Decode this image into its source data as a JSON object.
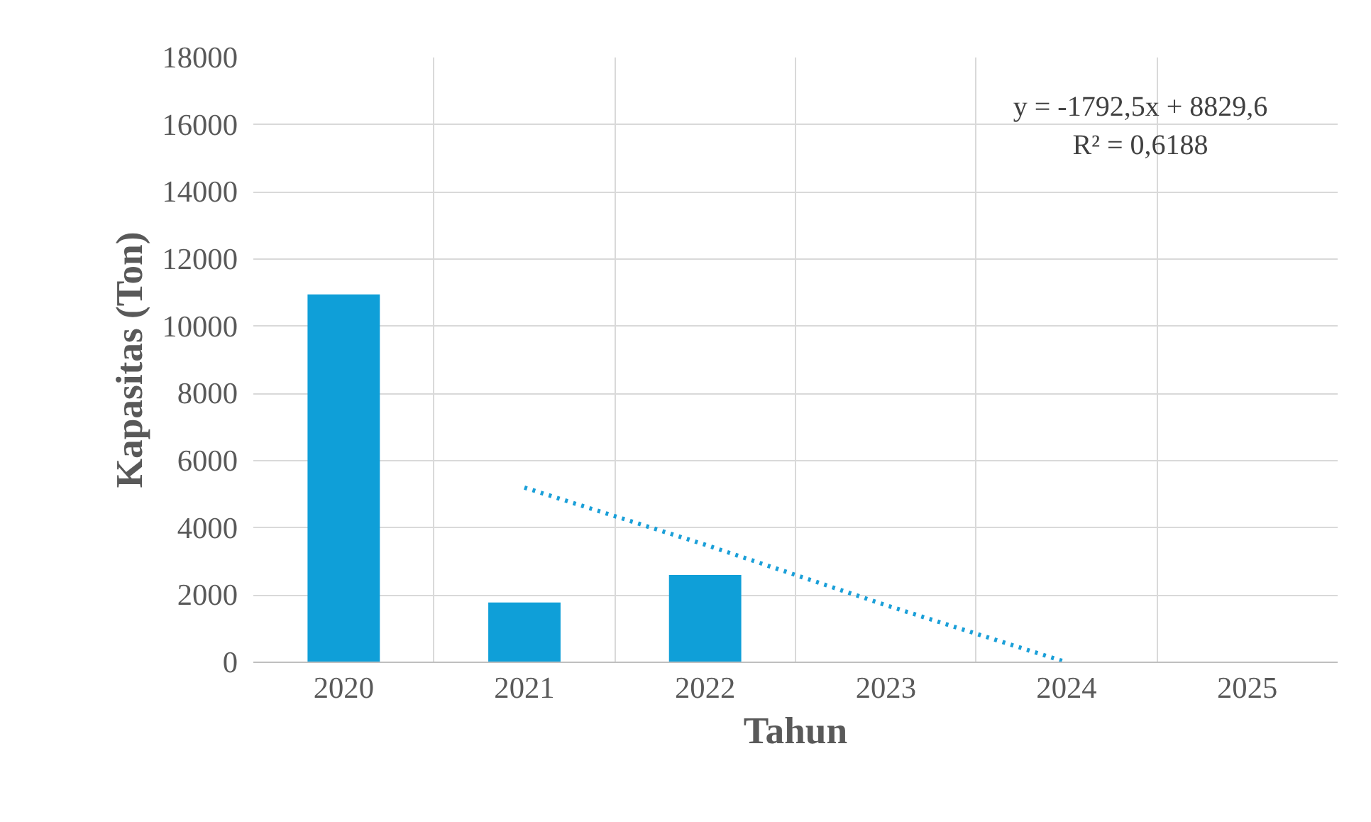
{
  "chart_data": {
    "type": "bar",
    "xlabel": "Tahun",
    "ylabel": "Kapasitas (Ton)",
    "categories": [
      "2020",
      "2021",
      "2022",
      "2023",
      "2024",
      "2025"
    ],
    "series": [
      {
        "color": "#0f9fd8",
        "values": [
          10950,
          1780,
          2600,
          null,
          null,
          null
        ]
      },
      {
        "type": "line",
        "color": "#1a9fd8",
        "line_style": "dotted",
        "values": [
          null,
          5200,
          3500,
          1700,
          0,
          null
        ]
      }
    ],
    "ylim": [
      0,
      18000
    ],
    "yticks": [
      0,
      2000,
      4000,
      6000,
      8000,
      10000,
      12000,
      14000,
      16000,
      18000
    ],
    "grid": true,
    "annotations": [
      "y = -1792,5x + 8829,6",
      "R² = 0,6188"
    ]
  }
}
